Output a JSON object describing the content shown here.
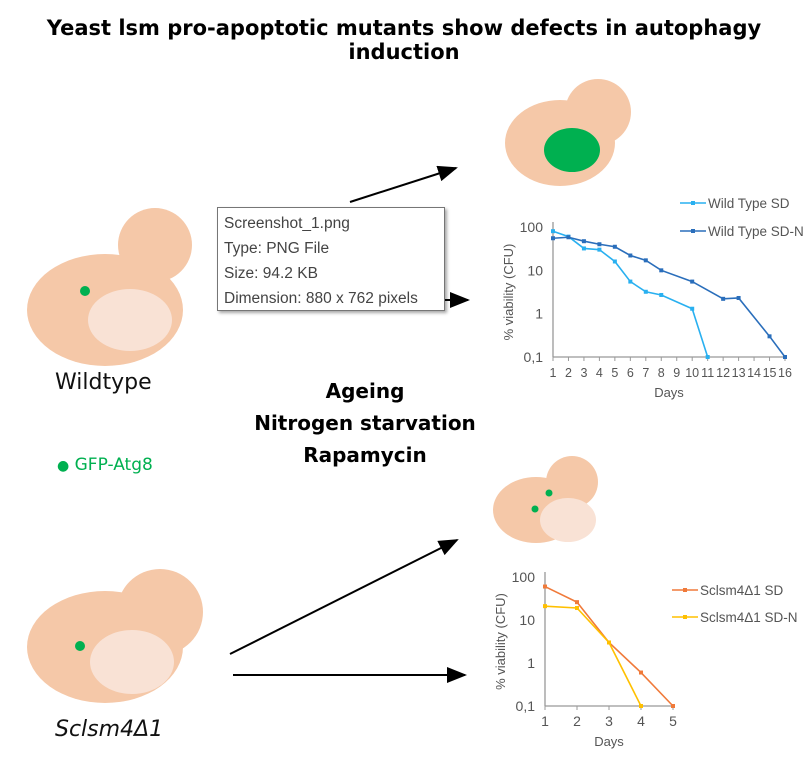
{
  "title": "Yeast lsm pro-apoptotic mutants show defects in autophagy induction",
  "labels": {
    "wildtype": "Wildtype",
    "mutant": "Sclsm4Δ1",
    "gfp_legend": "GFP-Atg8"
  },
  "conditions": [
    "Ageing",
    "Nitrogen starvation",
    "Rapamycin"
  ],
  "tooltip": {
    "name": "Screenshot_1.png",
    "type": "Type: PNG File",
    "size": "Size: 94.2 KB",
    "dimension": "Dimension: 880 x 762 pixels"
  },
  "colors": {
    "cell": "#f5c8a8",
    "vacuole": "#f9e2d5",
    "gfp": "#00b050"
  },
  "chart_data": [
    {
      "type": "line",
      "xlabel": "Days",
      "ylabel": "% viability (CFU)",
      "yscale": "log",
      "ylim": [
        0.1,
        100
      ],
      "yticks": [
        "0,1",
        "1",
        "10",
        "100"
      ],
      "xticks": [
        1,
        2,
        3,
        4,
        5,
        6,
        7,
        8,
        9,
        10,
        11,
        12,
        13,
        14,
        15,
        16
      ],
      "legend": "top-right",
      "series": [
        {
          "name": "Wild Type SD",
          "color": "#29b0f0",
          "x": [
            1,
            2,
            3,
            4,
            5,
            6,
            7,
            8,
            10,
            11
          ],
          "values": [
            80,
            60,
            32,
            30,
            16,
            5.5,
            3.2,
            2.7,
            1.3,
            0.1
          ]
        },
        {
          "name": "Wild Type SD-N",
          "color": "#2a6ebb",
          "x": [
            1,
            2,
            3,
            4,
            5,
            6,
            7,
            8,
            10,
            12,
            13,
            15,
            16
          ],
          "values": [
            55,
            58,
            47,
            40,
            35,
            22,
            17,
            10,
            5.5,
            2.2,
            2.3,
            0.3,
            0.1
          ]
        }
      ]
    },
    {
      "type": "line",
      "xlabel": "Days",
      "ylabel": "% viability (CFU)",
      "yscale": "log",
      "ylim": [
        0.1,
        100
      ],
      "yticks": [
        "0,1",
        "1",
        "10",
        "100"
      ],
      "xticks": [
        1,
        2,
        3,
        4,
        5
      ],
      "legend": "right",
      "series": [
        {
          "name": "Sclsm4Δ1 SD",
          "color": "#f07a3a",
          "x": [
            1,
            2,
            3,
            4,
            5
          ],
          "values": [
            60,
            26,
            3,
            0.6,
            0.1
          ]
        },
        {
          "name": "Sclsm4Δ1 SD-N",
          "color": "#ffc000",
          "x": [
            1,
            2,
            3,
            4
          ],
          "values": [
            21,
            19,
            3,
            0.1
          ]
        }
      ]
    }
  ]
}
